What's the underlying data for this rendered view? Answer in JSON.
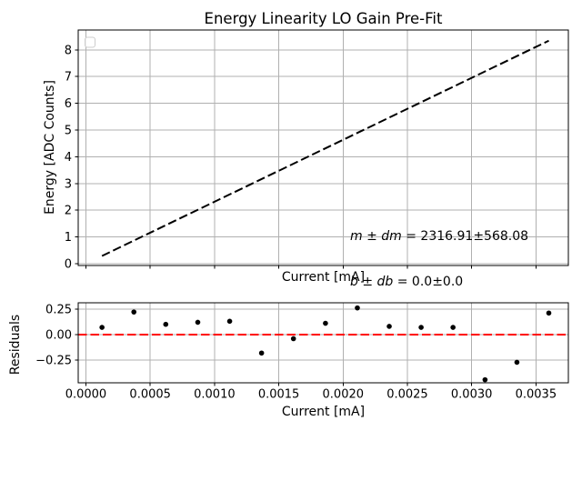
{
  "figure_title": "Energy Linearity LO Gain Pre-Fit",
  "annotation": {
    "line1_var": "m ± dm",
    "line1_val": " = 2316.91±568.08",
    "line2_var": "b ± db",
    "line2_val": " = 0.0±0.0"
  },
  "colors": {
    "fit_line": "#000000",
    "zero_line": "#ff0000",
    "grid": "#b0b0b0",
    "marker": "#000000",
    "spine": "#000000",
    "legend_edge": "#cccccc",
    "background": "#ffffff"
  },
  "chart_data": [
    {
      "type": "line",
      "title": "Energy Linearity LO Gain Pre-Fit",
      "xlabel": "Current [mA]",
      "ylabel": "Energy [ADC Counts]",
      "xlim": [
        -6e-05,
        0.003752
      ],
      "ylim": [
        -0.068,
        8.74
      ],
      "xticks": [
        0.0,
        0.0005,
        0.001,
        0.0015,
        0.002,
        0.0025,
        0.003,
        0.0035
      ],
      "xtick_labels": [],
      "yticks": [
        0,
        1,
        2,
        3,
        4,
        5,
        6,
        7,
        8
      ],
      "ytick_labels": [
        "0",
        "1",
        "2",
        "3",
        "4",
        "5",
        "6",
        "7",
        "8"
      ],
      "grid": true,
      "legend": {
        "visible": true,
        "empty": true,
        "position": "upper-left"
      },
      "fit": {
        "m": 2316.91,
        "dm": 568.08,
        "b": 0.0,
        "db": 0.0
      },
      "annotation_lines": [
        "m ± dm = 2316.91±568.08",
        "b ± db = 0.0±0.0"
      ],
      "series": [
        {
          "name": "pre-fit-line",
          "style": "dashed",
          "color": "#000000",
          "x": [
            0.000125,
            0.0036
          ],
          "y": [
            0.29,
            8.34
          ]
        }
      ]
    },
    {
      "type": "scatter",
      "title": "",
      "xlabel": "Current [mA]",
      "ylabel": "Residuals",
      "xlim": [
        -6e-05,
        0.003752
      ],
      "ylim": [
        -0.47,
        0.31
      ],
      "xticks": [
        0.0,
        0.0005,
        0.001,
        0.0015,
        0.002,
        0.0025,
        0.003,
        0.0035
      ],
      "xtick_labels": [
        "0.0000",
        "0.0005",
        "0.0010",
        "0.0015",
        "0.0020",
        "0.0025",
        "0.0030",
        "0.0035"
      ],
      "yticks": [
        -0.25,
        0.0,
        0.25
      ],
      "ytick_labels": [
        "−0.25",
        "0.00",
        "0.25"
      ],
      "grid": true,
      "zero_line": {
        "y": 0.0,
        "color": "#ff0000",
        "style": "dashed"
      },
      "x": [
        0.000125,
        0.000373,
        0.000621,
        0.00087,
        0.001118,
        0.001366,
        0.001614,
        0.001863,
        0.002111,
        0.002359,
        0.002607,
        0.002855,
        0.003104,
        0.003352,
        0.0036
      ],
      "y": [
        0.07,
        0.22,
        0.1,
        0.12,
        0.13,
        -0.18,
        -0.04,
        0.11,
        0.26,
        0.08,
        0.07,
        0.07,
        -0.44,
        -0.27,
        0.21
      ]
    }
  ]
}
